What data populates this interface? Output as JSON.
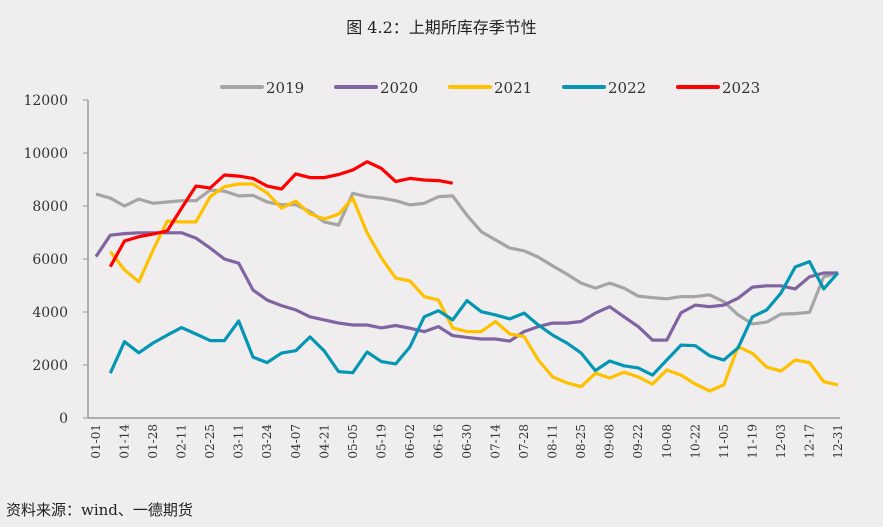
{
  "title": "图 4.2：上期所库存季节性",
  "source": "资料来源：wind、一德期货",
  "chart_data": {
    "type": "line",
    "title": "图 4.2：上期所库存季节性",
    "xlabel": "",
    "ylabel": "",
    "ylim": [
      0,
      12000
    ],
    "yticks": [
      0,
      2000,
      4000,
      6000,
      8000,
      10000,
      12000
    ],
    "grid": false,
    "legend": "top",
    "tick_labels": [
      "01-01",
      "01-14",
      "01-28",
      "02-11",
      "02-25",
      "03-11",
      "03-24",
      "04-07",
      "04-21",
      "05-05",
      "05-19",
      "06-02",
      "06-16",
      "06-30",
      "07-14",
      "07-28",
      "08-11",
      "08-25",
      "09-08",
      "09-22",
      "10-08",
      "10-22",
      "11-05",
      "11-19",
      "12-03",
      "12-17",
      "12-31"
    ],
    "series": [
      {
        "name": "2019",
        "color": "#a5a5a5",
        "values": [
          8450,
          8300,
          8000,
          8260,
          8100,
          8150,
          8200,
          8200,
          8600,
          8560,
          8380,
          8400,
          8150,
          8050,
          8050,
          7790,
          7400,
          7280,
          8480,
          8350,
          8300,
          8200,
          8040,
          8100,
          8350,
          8380,
          7650,
          7030,
          6720,
          6410,
          6310,
          6070,
          5740,
          5430,
          5090,
          4900,
          5090,
          4900,
          4600,
          4540,
          4500,
          4580,
          4580,
          4650,
          4390,
          3890,
          3550,
          3620,
          3920,
          3940,
          3990,
          5330,
          5470
        ]
      },
      {
        "name": "2020",
        "color": "#8064a2",
        "values": [
          6090,
          6900,
          6960,
          6990,
          6990,
          6990,
          6990,
          6790,
          6410,
          6000,
          5840,
          4830,
          4450,
          4240,
          4080,
          3820,
          3700,
          3580,
          3510,
          3510,
          3400,
          3490,
          3390,
          3260,
          3450,
          3110,
          3040,
          2980,
          2980,
          2900,
          3260,
          3450,
          3580,
          3580,
          3640,
          3960,
          4200,
          3820,
          3450,
          2940,
          2940,
          3970,
          4260,
          4200,
          4260,
          4520,
          4940,
          4990,
          4990,
          4870,
          5330,
          5470,
          5470
        ]
      },
      {
        "name": "2021",
        "color": "#ffc000",
        "values": [
          null,
          6280,
          5590,
          5140,
          6340,
          7430,
          7400,
          7400,
          8350,
          8730,
          8830,
          8830,
          8490,
          7920,
          8190,
          7700,
          7510,
          7690,
          8300,
          6990,
          6040,
          5280,
          5170,
          4580,
          4450,
          3400,
          3260,
          3260,
          3640,
          3170,
          3070,
          2190,
          1550,
          1330,
          1180,
          1690,
          1510,
          1730,
          1550,
          1280,
          1810,
          1620,
          1280,
          1020,
          1250,
          2690,
          2440,
          1920,
          1770,
          2190,
          2090,
          1370,
          1250
        ]
      },
      {
        "name": "2022",
        "color": "#0596b4",
        "values": [
          null,
          1690,
          2880,
          2460,
          2830,
          3130,
          3410,
          3170,
          2920,
          2920,
          3660,
          2300,
          2090,
          2450,
          2540,
          3060,
          2530,
          1750,
          1710,
          2490,
          2130,
          2040,
          2680,
          3820,
          4050,
          3700,
          4430,
          4010,
          3890,
          3740,
          3960,
          3510,
          3130,
          2830,
          2450,
          1790,
          2150,
          1970,
          1890,
          1620,
          2190,
          2750,
          2730,
          2350,
          2190,
          2650,
          3820,
          4080,
          4710,
          5700,
          5900,
          4870,
          5480
        ]
      },
      {
        "name": "2023",
        "color": "#ff0000",
        "values": [
          null,
          5710,
          6680,
          6840,
          6940,
          7060,
          7920,
          8750,
          8680,
          9170,
          9130,
          9040,
          8750,
          8640,
          9210,
          9070,
          9070,
          9190,
          9360,
          9670,
          9420,
          8920,
          9040,
          8980,
          8960,
          8860
        ]
      }
    ]
  }
}
